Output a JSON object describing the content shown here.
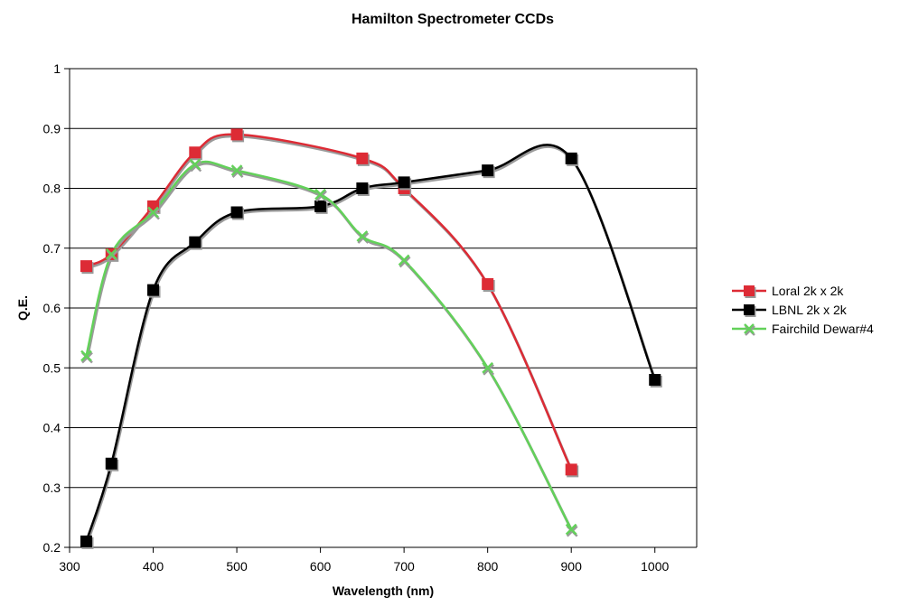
{
  "chart_data": {
    "type": "line",
    "title": "Hamilton Spectrometer CCDs",
    "xlabel": "Wavelength (nm)",
    "ylabel": "Q.E.",
    "xlim": [
      300,
      1050
    ],
    "ylim": [
      0.2,
      1
    ],
    "x_ticks": [
      "300",
      "400",
      "500",
      "600",
      "700",
      "800",
      "900",
      "1000"
    ],
    "y_ticks": [
      "0.2",
      "0.3",
      "0.4",
      "0.5",
      "0.6",
      "0.7",
      "0.8",
      "0.9",
      "1"
    ],
    "grid": "horizontal",
    "legend_position": "right",
    "smoothed": true,
    "series": [
      {
        "name": "Loral 2k x 2k",
        "color": "#dd2b35",
        "marker": "square",
        "x": [
          320,
          350,
          400,
          450,
          500,
          650,
          700,
          800,
          900
        ],
        "y": [
          0.67,
          0.69,
          0.77,
          0.86,
          0.89,
          0.85,
          0.8,
          0.64,
          0.33
        ]
      },
      {
        "name": "LBNL 2k x 2k",
        "color": "#000000",
        "marker": "square",
        "x": [
          320,
          350,
          400,
          450,
          500,
          600,
          650,
          700,
          800,
          900,
          1000
        ],
        "y": [
          0.21,
          0.34,
          0.63,
          0.71,
          0.76,
          0.77,
          0.8,
          0.81,
          0.83,
          0.85,
          0.48
        ]
      },
      {
        "name": "Fairchild Dewar#4",
        "color": "#63d15a",
        "marker": "x",
        "x": [
          320,
          350,
          400,
          450,
          500,
          600,
          650,
          700,
          800,
          900
        ],
        "y": [
          0.52,
          0.69,
          0.76,
          0.84,
          0.83,
          0.79,
          0.72,
          0.68,
          0.5,
          0.23
        ]
      }
    ]
  }
}
